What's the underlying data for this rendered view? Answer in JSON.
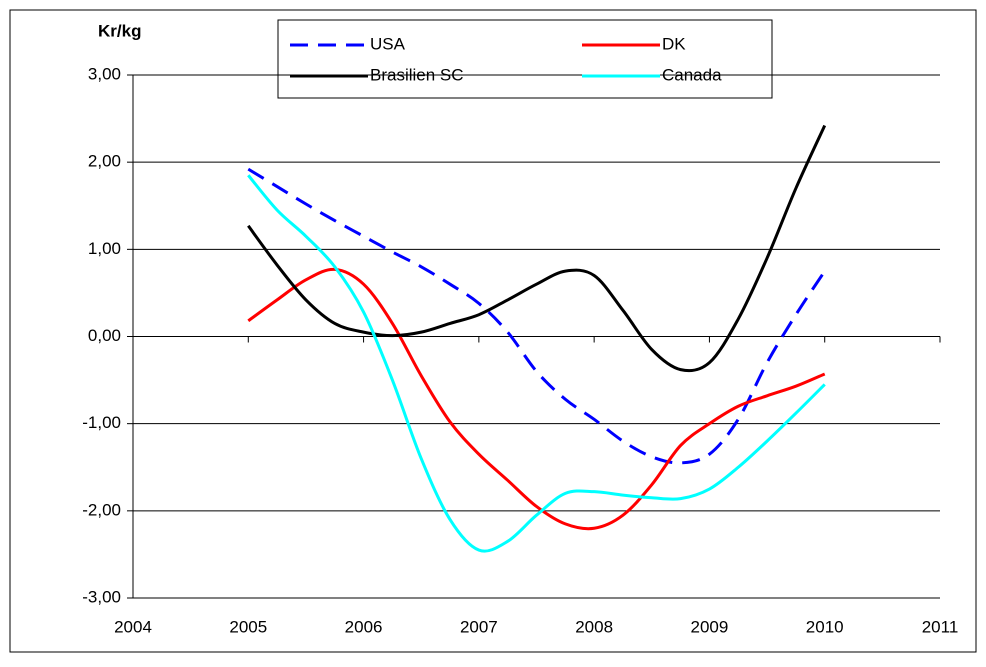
{
  "chart_data": {
    "type": "line",
    "ylabel": "Kr/kg",
    "x": [
      2005,
      2005.25,
      2005.5,
      2005.75,
      2006,
      2006.25,
      2006.5,
      2006.75,
      2007,
      2007.25,
      2007.5,
      2007.75,
      2008,
      2008.25,
      2008.5,
      2008.75,
      2009,
      2009.25,
      2009.5,
      2009.75,
      2010
    ],
    "series": [
      {
        "name": "USA",
        "color": "#0000ff",
        "dashed": true,
        "values": [
          1.92,
          1.72,
          1.52,
          1.33,
          1.15,
          0.97,
          0.8,
          0.6,
          0.38,
          0.05,
          -0.4,
          -0.72,
          -0.95,
          -1.2,
          -1.38,
          -1.45,
          -1.35,
          -0.95,
          -0.3,
          0.25,
          0.75
        ]
      },
      {
        "name": "DK",
        "color": "#ff0000",
        "values": [
          0.18,
          0.42,
          0.65,
          0.77,
          0.6,
          0.15,
          -0.45,
          -0.98,
          -1.35,
          -1.65,
          -1.95,
          -2.15,
          -2.2,
          -2.05,
          -1.7,
          -1.25,
          -1.0,
          -0.8,
          -0.68,
          -0.57,
          -0.43
        ]
      },
      {
        "name": "Brasilien SC",
        "color": "#000000",
        "values": [
          1.27,
          0.82,
          0.42,
          0.15,
          0.05,
          0.01,
          0.05,
          0.15,
          0.25,
          0.42,
          0.6,
          0.75,
          0.7,
          0.3,
          -0.15,
          -0.38,
          -0.3,
          0.2,
          0.9,
          1.7,
          2.42
        ]
      },
      {
        "name": "Canada",
        "color": "#00ffff",
        "values": [
          1.85,
          1.45,
          1.15,
          0.8,
          0.28,
          -0.5,
          -1.4,
          -2.1,
          -2.45,
          -2.35,
          -2.05,
          -1.8,
          -1.78,
          -1.82,
          -1.85,
          -1.86,
          -1.75,
          -1.5,
          -1.2,
          -0.88,
          -0.55
        ]
      }
    ],
    "xlim": [
      2004,
      2011
    ],
    "xticks": [
      2004,
      2005,
      2006,
      2007,
      2008,
      2009,
      2010,
      2011
    ],
    "ylim": [
      -3,
      3
    ],
    "yticks": [
      {
        "value": -3,
        "label": "-3,00"
      },
      {
        "value": -2,
        "label": "-2,00"
      },
      {
        "value": -1,
        "label": "-1,00"
      },
      {
        "value": 0,
        "label": "0,00"
      },
      {
        "value": 1,
        "label": "1,00"
      },
      {
        "value": 2,
        "label": "2,00"
      },
      {
        "value": 3,
        "label": "3,00"
      }
    ],
    "grid": true,
    "legend": "top"
  }
}
